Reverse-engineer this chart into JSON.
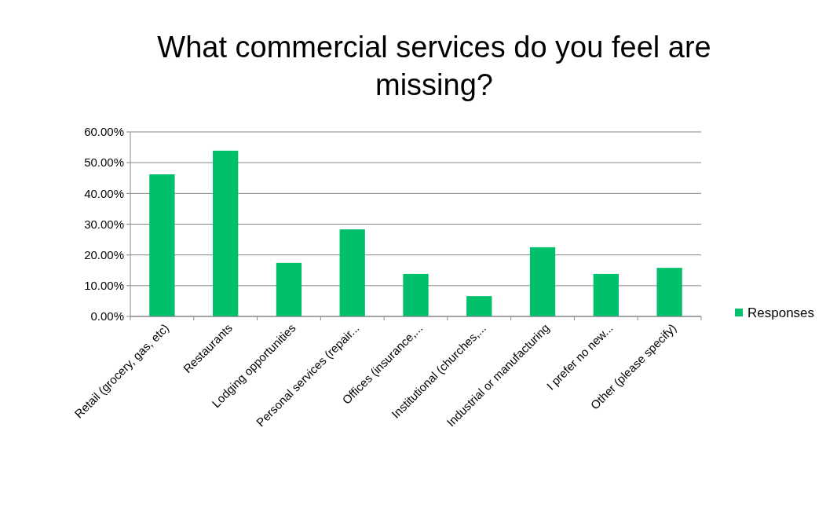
{
  "chart_data": {
    "type": "bar",
    "title": "What commercial services do you feel are missing?",
    "categories": [
      "Retail (grocery, gas, etc)",
      "Restaurants",
      "Lodging opportunities",
      "Personal services (repair...",
      "Offices (insurance,...",
      "Institutional (churches,...",
      "Industrial or manufacturing",
      "I prefer no new...",
      "Other (please specify)"
    ],
    "series": [
      {
        "name": "Responses",
        "color": "#00c06b",
        "values": [
          46.2,
          53.9,
          17.4,
          28.3,
          13.8,
          6.6,
          22.5,
          13.8,
          15.8
        ]
      }
    ],
    "ylim": [
      0,
      60
    ],
    "yticks": [
      {
        "value": 0,
        "label": "0.00%"
      },
      {
        "value": 10,
        "label": "10.00%"
      },
      {
        "value": 20,
        "label": "20.00%"
      },
      {
        "value": 30,
        "label": "30.00%"
      },
      {
        "value": 40,
        "label": "40.00%"
      },
      {
        "value": 50,
        "label": "50.00%"
      },
      {
        "value": 60,
        "label": "60.00%"
      }
    ],
    "grid": "y",
    "legend": "right"
  }
}
